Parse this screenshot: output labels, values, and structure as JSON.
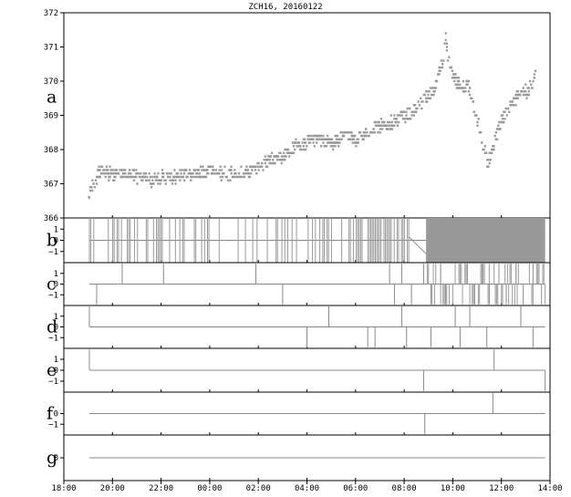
{
  "chart_data": {
    "type": "scatter",
    "title": "ZCH16, 20160122",
    "x_ticks": [
      "18:00",
      "20:00",
      "22:00",
      "00:00",
      "02:00",
      "04:00",
      "06:00",
      "08:00",
      "10:00",
      "12:00",
      "14:00"
    ],
    "x_range_hours": [
      18,
      38
    ],
    "panels": [
      {
        "letter": "a",
        "ylim": [
          366,
          372
        ],
        "y_ticks": [
          "366",
          "367",
          "368",
          "369",
          "370",
          "371",
          "372"
        ],
        "series_color": "#999999",
        "price_path": [
          [
            19.0,
            366.6
          ],
          [
            19.05,
            366.9
          ],
          [
            19.2,
            367.0
          ],
          [
            19.4,
            367.3
          ],
          [
            19.6,
            367.4
          ],
          [
            20.0,
            367.25
          ],
          [
            20.5,
            367.3
          ],
          [
            21.0,
            367.2
          ],
          [
            21.5,
            367.1
          ],
          [
            22.0,
            367.2
          ],
          [
            22.5,
            367.2
          ],
          [
            23.0,
            367.3
          ],
          [
            23.5,
            367.3
          ],
          [
            24.0,
            367.4
          ],
          [
            24.5,
            367.3
          ],
          [
            25.0,
            367.3
          ],
          [
            25.5,
            367.35
          ],
          [
            26.0,
            367.5
          ],
          [
            26.5,
            367.7
          ],
          [
            27.0,
            367.8
          ],
          [
            27.5,
            368.1
          ],
          [
            28.0,
            368.2
          ],
          [
            28.5,
            368.3
          ],
          [
            29.0,
            368.2
          ],
          [
            29.5,
            368.4
          ],
          [
            30.0,
            368.3
          ],
          [
            30.5,
            368.5
          ],
          [
            31.0,
            368.7
          ],
          [
            31.5,
            368.8
          ],
          [
            32.0,
            369.0
          ],
          [
            32.5,
            369.2
          ],
          [
            33.0,
            369.6
          ],
          [
            33.25,
            369.9
          ],
          [
            33.4,
            370.3
          ],
          [
            33.6,
            370.7
          ],
          [
            33.65,
            371.4
          ],
          [
            33.75,
            370.8
          ],
          [
            33.9,
            370.2
          ],
          [
            34.1,
            370.0
          ],
          [
            34.4,
            369.8
          ],
          [
            34.6,
            369.9
          ],
          [
            34.8,
            369.3
          ],
          [
            35.0,
            368.8
          ],
          [
            35.2,
            368.2
          ],
          [
            35.4,
            367.6
          ],
          [
            35.6,
            368.0
          ],
          [
            35.8,
            368.5
          ],
          [
            36.0,
            368.9
          ],
          [
            36.2,
            369.1
          ],
          [
            36.4,
            369.4
          ],
          [
            36.7,
            369.6
          ],
          [
            37.0,
            369.7
          ],
          [
            37.2,
            369.85
          ],
          [
            37.35,
            370.1
          ],
          [
            37.4,
            370.3
          ]
        ]
      },
      {
        "letter": "b",
        "ylim": [
          -2,
          2
        ],
        "y_ticks": [
          "1",
          "0",
          "−1"
        ]
      },
      {
        "letter": "c",
        "ylim": [
          -2,
          2
        ],
        "y_ticks": [
          "1",
          "0",
          "−1"
        ]
      },
      {
        "letter": "d",
        "ylim": [
          -2,
          2
        ],
        "y_ticks": [
          "1",
          "0",
          "−1"
        ]
      },
      {
        "letter": "e",
        "ylim": [
          -2,
          2
        ],
        "y_ticks": [
          "1",
          "0",
          "−1"
        ]
      },
      {
        "letter": "f",
        "ylim": [
          -2,
          2
        ],
        "y_ticks": [
          "0",
          "−1"
        ]
      },
      {
        "letter": "g",
        "ylim": [
          -1,
          1
        ],
        "y_ticks": [
          "0"
        ]
      }
    ],
    "signal_events": {
      "c": [
        [
          19.35,
          -1
        ],
        [
          20.4,
          1
        ],
        [
          22.1,
          1
        ],
        [
          25.9,
          1
        ],
        [
          27.0,
          -1
        ],
        [
          31.4,
          1
        ],
        [
          31.6,
          -1
        ],
        [
          31.9,
          1
        ],
        [
          32.3,
          -1
        ],
        [
          32.8,
          1
        ],
        [
          33.1,
          -1
        ],
        [
          33.5,
          1
        ],
        [
          33.7,
          -1
        ],
        [
          34.6,
          1
        ],
        [
          34.9,
          -1
        ],
        [
          35.2,
          1
        ],
        [
          35.5,
          -1
        ],
        [
          35.9,
          1
        ],
        [
          36.2,
          -1
        ],
        [
          36.6,
          1
        ],
        [
          36.9,
          -1
        ],
        [
          37.3,
          1
        ]
      ],
      "d": [
        [
          19.05,
          1
        ],
        [
          28.0,
          -1
        ],
        [
          28.9,
          1
        ],
        [
          30.5,
          -1
        ],
        [
          30.8,
          -1
        ],
        [
          31.9,
          1
        ],
        [
          32.1,
          -1
        ],
        [
          33.1,
          -1
        ],
        [
          34.1,
          1
        ],
        [
          34.3,
          -1
        ],
        [
          34.7,
          1
        ],
        [
          35.4,
          -1
        ],
        [
          37.3,
          -1
        ],
        [
          36.8,
          1
        ]
      ],
      "e": [
        [
          19.05,
          1
        ],
        [
          32.8,
          -1
        ],
        [
          35.7,
          1
        ],
        [
          37.8,
          -1
        ]
      ],
      "f": [
        [
          32.85,
          -1
        ],
        [
          35.65,
          1
        ]
      ]
    }
  }
}
